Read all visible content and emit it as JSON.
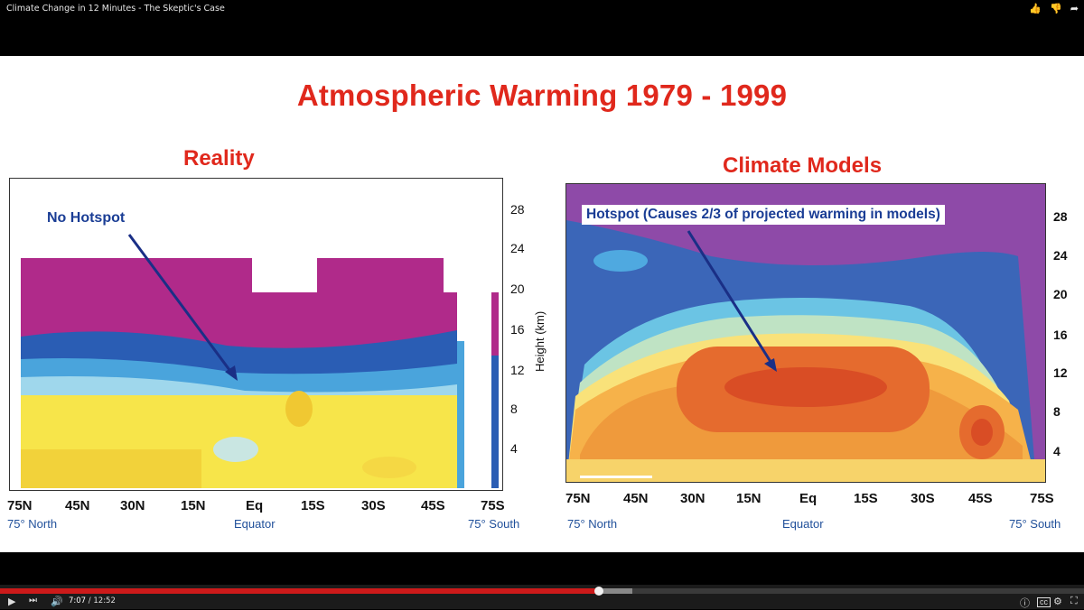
{
  "video": {
    "title": "Climate Change in 12 Minutes - The Skeptic's Case",
    "current_time": "7:07",
    "separator": " / ",
    "duration": "12:52",
    "progress_fraction": 0.5525,
    "buffered_fraction": 0.583
  },
  "icons": {
    "like": "thumbs-up-icon",
    "dislike": "thumbs-down-icon",
    "share": "share-icon",
    "play": "play-icon",
    "next": "next-icon",
    "volume": "volume-icon",
    "info": "info-icon",
    "captions": "captions-icon",
    "settings": "gear-icon",
    "fullscreen": "fullscreen-icon"
  },
  "slide": {
    "title": "Atmospheric Warming 1979 - 1999",
    "left": {
      "title": "Reality",
      "annotation": "No Hotspot",
      "x_ticks": [
        "75N",
        "45N",
        "30N",
        "15N",
        "Eq",
        "15S",
        "30S",
        "45S",
        "75S"
      ],
      "x_sub_left": "75° North",
      "x_sub_mid": "Equator",
      "x_sub_right": "75° South",
      "y_ticks": [
        "28",
        "24",
        "20",
        "16",
        "12",
        "8",
        "4"
      ],
      "y_label": "Height (km)"
    },
    "right": {
      "title": "Climate Models",
      "annotation": "Hotspot (Causes 2/3 of projected warming in models)",
      "x_ticks": [
        "75N",
        "45N",
        "30N",
        "15N",
        "Eq",
        "15S",
        "30S",
        "45S",
        "75S"
      ],
      "x_sub_left": "75° North",
      "x_sub_mid": "Equator",
      "x_sub_right": "75° South",
      "y_ticks": [
        "28",
        "24",
        "20",
        "16",
        "12",
        "8",
        "4"
      ]
    }
  },
  "colors": {
    "title_red": "#e0281c",
    "annotation_blue": "#1a3d95",
    "progress_red": "#cc1a1a"
  }
}
